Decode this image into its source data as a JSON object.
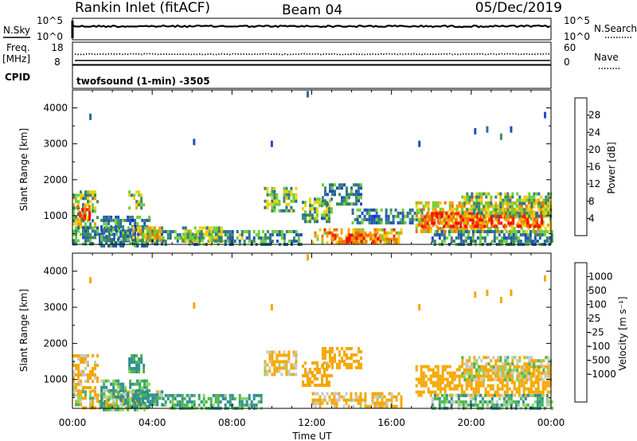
{
  "header": {
    "site": "Rankin Inlet (fitACF)",
    "beam": "Beam 04",
    "date": "05/Dec/2019"
  },
  "sky_panel": {
    "left_label": "N.Sky",
    "right_label": "N.Search",
    "left_ticks": [
      "10^5",
      "10^0"
    ],
    "right_ticks": [
      "10^5",
      "10^0"
    ]
  },
  "freq_panel": {
    "left_label": "Freq.",
    "left_unit": "[MHz]",
    "right_label": "Nave",
    "left_ticks": [
      "18",
      "8"
    ],
    "right_ticks": [
      "60",
      "0"
    ]
  },
  "cpid": {
    "label": "CPID",
    "program": "twofsound (1-min) -3505"
  },
  "colors": {
    "power": [
      "#0b1ae6",
      "#1f4fbf",
      "#2d6e95",
      "#3f8a62",
      "#6ccf3a",
      "#f0d000",
      "#f5a000",
      "#f07000",
      "#e83000",
      "#ff0000"
    ],
    "velocity": [
      "#ff0000",
      "#f04a00",
      "#f28000",
      "#f5a800",
      "#c8c8c8",
      "#8bd66e",
      "#4eb44e",
      "#2f8f8f",
      "#2a5fb0",
      "#1a2fc8"
    ]
  },
  "chart_data": [
    {
      "type": "heatmap",
      "name": "power",
      "ylabel": "Slant Range [km]",
      "ylim": [
        200,
        4500
      ],
      "yticks": [
        "1000",
        "2000",
        "3000",
        "4000"
      ],
      "xlim": [
        0,
        24
      ],
      "colorbar": {
        "label": "Power [dB]",
        "range": [
          0,
          32
        ],
        "ticks": [
          "4",
          "8",
          "12",
          "16",
          "20",
          "24",
          "28"
        ]
      },
      "echo_regions": [
        {
          "t": [
            0.0,
            1.2
          ],
          "r": [
            700,
            1700
          ],
          "v": 14
        },
        {
          "t": [
            0.2,
            0.8
          ],
          "r": [
            900,
            1300
          ],
          "v": 26
        },
        {
          "t": [
            0.0,
            4.5
          ],
          "r": [
            200,
            700
          ],
          "v": 10
        },
        {
          "t": [
            1.4,
            3.8
          ],
          "r": [
            200,
            1000
          ],
          "v": 9
        },
        {
          "t": [
            2.8,
            3.6
          ],
          "r": [
            1200,
            1700
          ],
          "v": 14
        },
        {
          "t": [
            3.0,
            4.5
          ],
          "r": [
            300,
            700
          ],
          "v": 18
        },
        {
          "t": [
            4.5,
            9.5
          ],
          "r": [
            200,
            600
          ],
          "v": 11
        },
        {
          "t": [
            5.5,
            7.5
          ],
          "r": [
            300,
            700
          ],
          "v": 14
        },
        {
          "t": [
            9.6,
            11.2
          ],
          "r": [
            1100,
            1800
          ],
          "v": 13
        },
        {
          "t": [
            9.5,
            11.5
          ],
          "r": [
            200,
            600
          ],
          "v": 10
        },
        {
          "t": [
            11.5,
            13.0
          ],
          "r": [
            800,
            1500
          ],
          "v": 12
        },
        {
          "t": [
            12.5,
            14.5
          ],
          "r": [
            1300,
            1900
          ],
          "v": 9
        },
        {
          "t": [
            12.0,
            16.5
          ],
          "r": [
            250,
            650
          ],
          "v": 20
        },
        {
          "t": [
            13.0,
            15.5
          ],
          "r": [
            300,
            500
          ],
          "v": 26
        },
        {
          "t": [
            14.0,
            17.5
          ],
          "r": [
            800,
            1200
          ],
          "v": 9
        },
        {
          "t": [
            17.2,
            24.0
          ],
          "r": [
            600,
            1400
          ],
          "v": 19
        },
        {
          "t": [
            17.5,
            23.5
          ],
          "r": [
            700,
            1100
          ],
          "v": 27
        },
        {
          "t": [
            19.5,
            24.0
          ],
          "r": [
            1000,
            1650
          ],
          "v": 14
        },
        {
          "t": [
            18.0,
            24.0
          ],
          "r": [
            200,
            600
          ],
          "v": 10
        }
      ],
      "scattered_points": [
        {
          "t": 0.9,
          "r": 3750,
          "v": 8
        },
        {
          "t": 6.1,
          "r": 3050,
          "v": 6
        },
        {
          "t": 10.0,
          "r": 3000,
          "v": 6
        },
        {
          "t": 11.8,
          "r": 4380,
          "v": 8
        },
        {
          "t": 17.4,
          "r": 3000,
          "v": 6
        },
        {
          "t": 20.2,
          "r": 3350,
          "v": 6
        },
        {
          "t": 20.8,
          "r": 3400,
          "v": 8
        },
        {
          "t": 21.5,
          "r": 3200,
          "v": 10
        },
        {
          "t": 22.0,
          "r": 3400,
          "v": 6
        },
        {
          "t": 23.7,
          "r": 3800,
          "v": 6
        }
      ]
    },
    {
      "type": "heatmap",
      "name": "velocity",
      "ylabel": "Slant Range [km]",
      "ylim": [
        200,
        4500
      ],
      "yticks": [
        "1000",
        "2000",
        "3000",
        "4000"
      ],
      "xlabel": "Time UT",
      "xlim": [
        0,
        24
      ],
      "xticks": [
        "00:00",
        "04:00",
        "08:00",
        "12:00",
        "16:00",
        "20:00",
        "00:00"
      ],
      "colorbar": {
        "label": "Velocity [m s⁻¹]",
        "ticks": [
          "1000",
          "500",
          "100",
          "25",
          "-25",
          "-100",
          "-500",
          "-1000"
        ]
      },
      "echo_regions": [
        {
          "t": [
            0.0,
            1.2
          ],
          "r": [
            700,
            1700
          ],
          "v": -150
        },
        {
          "t": [
            0.0,
            4.5
          ],
          "r": [
            200,
            700
          ],
          "v": -60
        },
        {
          "t": [
            1.4,
            3.8
          ],
          "r": [
            200,
            1000
          ],
          "v": 80
        },
        {
          "t": [
            2.8,
            3.6
          ],
          "r": [
            1200,
            1700
          ],
          "v": 150
        },
        {
          "t": [
            3.0,
            4.5
          ],
          "r": [
            300,
            700
          ],
          "v": 200
        },
        {
          "t": [
            4.5,
            9.5
          ],
          "r": [
            200,
            600
          ],
          "v": 120
        },
        {
          "t": [
            9.6,
            11.2
          ],
          "r": [
            1100,
            1800
          ],
          "v": -120
        },
        {
          "t": [
            11.5,
            13.0
          ],
          "r": [
            800,
            1500
          ],
          "v": -200
        },
        {
          "t": [
            12.5,
            14.5
          ],
          "r": [
            1300,
            1900
          ],
          "v": -250
        },
        {
          "t": [
            12.0,
            16.5
          ],
          "r": [
            250,
            650
          ],
          "v": -150
        },
        {
          "t": [
            17.2,
            24.0
          ],
          "r": [
            600,
            1400
          ],
          "v": -250
        },
        {
          "t": [
            19.5,
            24.0
          ],
          "r": [
            1000,
            1650
          ],
          "v": -60
        },
        {
          "t": [
            18.0,
            24.0
          ],
          "r": [
            200,
            600
          ],
          "v": 60
        }
      ],
      "scattered_points": [
        {
          "t": 0.9,
          "r": 3750,
          "v": -150
        },
        {
          "t": 6.1,
          "r": 3050,
          "v": -300
        },
        {
          "t": 10.0,
          "r": 3000,
          "v": -200
        },
        {
          "t": 11.8,
          "r": 4380,
          "v": -200
        },
        {
          "t": 17.4,
          "r": 3000,
          "v": -300
        },
        {
          "t": 20.2,
          "r": 3350,
          "v": -200
        },
        {
          "t": 20.8,
          "r": 3400,
          "v": -150
        },
        {
          "t": 21.5,
          "r": 3200,
          "v": -300
        },
        {
          "t": 22.0,
          "r": 3400,
          "v": -200
        },
        {
          "t": 23.7,
          "r": 3800,
          "v": -150
        }
      ]
    }
  ]
}
